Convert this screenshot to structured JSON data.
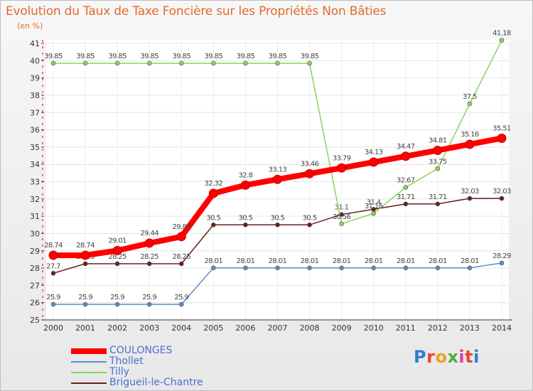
{
  "chart_data": {
    "type": "line",
    "title": "Evolution du Taux de Taxe Foncière sur les Propriétés Non Bâties",
    "unit_label": "(en %)",
    "ylim": [
      25,
      41
    ],
    "y_ticks": [
      25,
      26,
      27,
      28,
      29,
      30,
      31,
      32,
      33,
      34,
      35,
      36,
      37,
      38,
      39,
      40,
      41
    ],
    "categories": [
      "2000",
      "2001",
      "2002",
      "2003",
      "2004",
      "2005",
      "2006",
      "2007",
      "2008",
      "2009",
      "2010",
      "2011",
      "2012",
      "2013",
      "2014"
    ],
    "series": [
      {
        "name": "Brigueil-le-Chantre",
        "color": "#6b1e1e",
        "values": [
          27.7,
          28.25,
          28.25,
          28.25,
          28.25,
          30.5,
          30.5,
          30.5,
          30.5,
          31.1,
          31.4,
          31.71,
          31.71,
          32.03,
          32.03
        ],
        "labels": [
          "27.7",
          "28.25",
          "28.25",
          "28.25",
          "28.25",
          "30.5",
          "30.5",
          "30.5",
          "30.5",
          "31.1",
          "31.4",
          "31.71",
          "31.71",
          "32.03",
          "32.03"
        ]
      },
      {
        "name": "Thollet",
        "color": "#5a8fc8",
        "values": [
          25.9,
          25.9,
          25.9,
          25.9,
          25.9,
          28.01,
          28.01,
          28.01,
          28.01,
          28.01,
          28.01,
          28.01,
          28.01,
          28.01,
          28.29
        ],
        "labels": [
          "25.9",
          "25.9",
          "25.9",
          "25.9",
          "25.9",
          "28.01",
          "28.01",
          "28.01",
          "28.01",
          "28.01",
          "28.01",
          "28.01",
          "28.01",
          "28.01",
          "28.29"
        ]
      },
      {
        "name": "Tilly",
        "color": "#8cd25a",
        "values": [
          39.85,
          39.85,
          39.85,
          39.85,
          39.85,
          39.85,
          39.85,
          39.85,
          39.85,
          30.56,
          31.16,
          32.67,
          33.75,
          37.5,
          41.18
        ],
        "labels": [
          "39.85",
          "39.85",
          "39.85",
          "39.85",
          "39.85",
          "39.85",
          "39.85",
          "39.85",
          "39.85",
          "30.56",
          "31.16",
          "32.67",
          "33.75",
          "37.5",
          "41.18"
        ]
      },
      {
        "name": "COULONGES",
        "color": "#ff0000",
        "values": [
          28.74,
          28.74,
          29.01,
          29.44,
          29.82,
          32.32,
          32.8,
          33.13,
          33.46,
          33.79,
          34.13,
          34.47,
          34.81,
          35.16,
          35.51
        ],
        "labels": [
          "28.74",
          "28.74",
          "29.01",
          "29.44",
          "29.82",
          "32.32",
          "32.8",
          "33.13",
          "33.46",
          "33.79",
          "34.13",
          "34.47",
          "34.81",
          "35.16",
          "35.51"
        ]
      }
    ],
    "legend": [
      "COULONGES",
      "Thollet",
      "Tilly",
      "Brigueil-le-Chantre"
    ]
  },
  "brand": {
    "logo_text": "Proxiti",
    "letter_colors": [
      "#2b7fd6",
      "#e8452a",
      "#f0a020",
      "#4cae3a",
      "#d63bb0",
      "#e8452a",
      "#2b7fd6"
    ]
  }
}
